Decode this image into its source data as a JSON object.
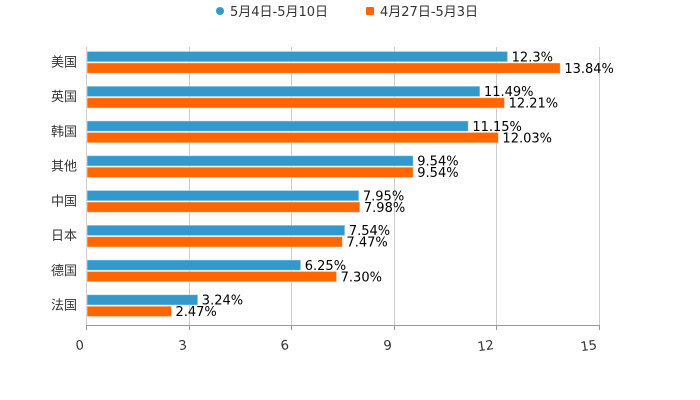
{
  "legend": {
    "series_a_label": "5月4日-5月10日",
    "series_b_label": "4月27日-5月3日"
  },
  "colors": {
    "series_a": "#3399CC",
    "series_b": "#FF6600",
    "grid": "#cccccc",
    "axis": "#999999",
    "text": "#333333"
  },
  "chart_data": {
    "type": "bar",
    "orientation": "horizontal",
    "title": "",
    "xlabel": "",
    "ylabel": "",
    "categories": [
      "美国",
      "英国",
      "韩国",
      "其他",
      "中国",
      "日本",
      "德国",
      "法国"
    ],
    "series": [
      {
        "name": "5月4日-5月10日",
        "values": [
          12.3,
          11.49,
          11.15,
          9.54,
          7.95,
          7.54,
          6.25,
          3.24
        ],
        "labels": [
          "12.3%",
          "11.49%",
          "11.15%",
          "9.54%",
          "7.95%",
          "7.54%",
          "6.25%",
          "3.24%"
        ]
      },
      {
        "name": "4月27日-5月3日",
        "values": [
          13.84,
          12.21,
          12.03,
          9.54,
          7.98,
          7.47,
          7.3,
          2.47
        ],
        "labels": [
          "13.84%",
          "12.21%",
          "12.03%",
          "9.54%",
          "7.98%",
          "7.47%",
          "7.30%",
          "2.47%"
        ]
      }
    ],
    "xlim": [
      0,
      15
    ],
    "xticks": [
      "0",
      "3",
      "6",
      "9",
      "12",
      "15"
    ],
    "grid": true,
    "legend_position": "top"
  }
}
